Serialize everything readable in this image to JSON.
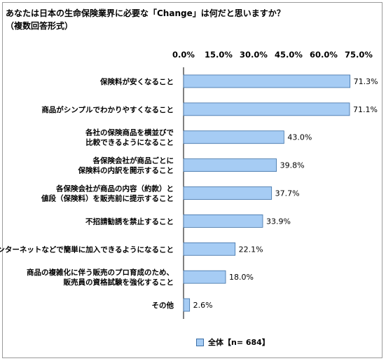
{
  "title_line1": "あなたは日本の生命保険業界に必要な「Change」は何だと思いますか？",
  "title_line2": "（複数回答形式）",
  "legend_label": "全体【n= 684】",
  "colors": {
    "bar_fill": "#a6ccf4",
    "bar_stroke": "#3c6fa6"
  },
  "chart_data": {
    "type": "bar",
    "orientation": "horizontal",
    "title": "あなたは日本の生命保険業界に必要な「Change」は何だと思いますか？",
    "subtitle": "（複数回答形式）",
    "xlim": [
      0,
      75
    ],
    "ticks": [
      "0.0%",
      "15.0%",
      "30.0%",
      "45.0%",
      "60.0%",
      "75.0%"
    ],
    "categories": [
      [
        "保険料が安くなること"
      ],
      [
        "商品がシンプルでわかりやすくなること"
      ],
      [
        "各社の保険商品を横並びで",
        "比較できるようになること"
      ],
      [
        "各保険会社が商品ごとに",
        "保険料の内訳を開示すること"
      ],
      [
        "各保険会社が商品の内容（約款）と",
        "値段（保険料）を販売前に提示すること"
      ],
      [
        "不招請勧誘を禁止すること"
      ],
      [
        "インターネットなどで簡単に加入できるようになること"
      ],
      [
        "商品の複雑化に伴う販売のプロ育成のため、",
        "販売員の資格試験を強化すること"
      ],
      [
        "その他"
      ]
    ],
    "values": [
      71.3,
      71.1,
      43.0,
      39.8,
      37.7,
      33.9,
      22.1,
      18.0,
      2.6
    ],
    "labels": [
      "71.3%",
      "71.1%",
      "43.0%",
      "39.8%",
      "37.7%",
      "33.9%",
      "22.1%",
      "18.0%",
      "2.6%"
    ],
    "legend": "全体【n= 684】"
  }
}
